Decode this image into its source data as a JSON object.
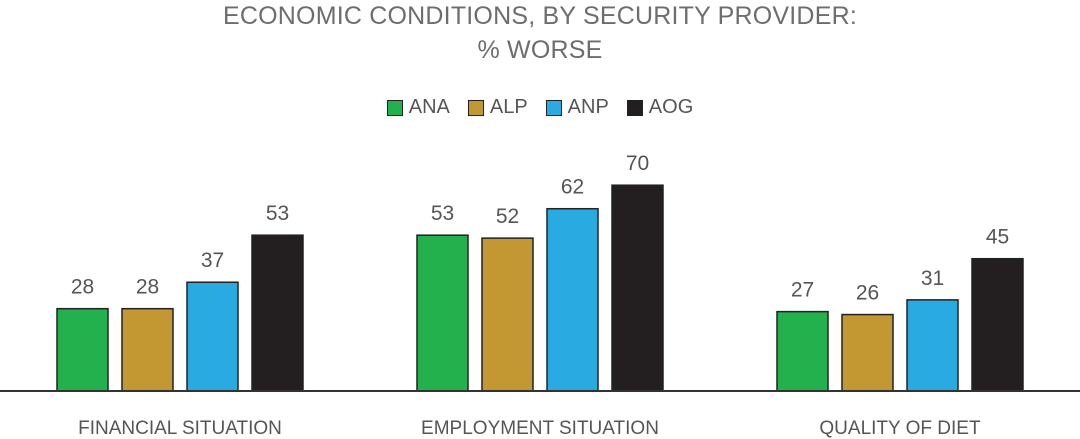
{
  "chart_data": {
    "type": "bar",
    "title_line1": "ECONOMIC CONDITIONS, BY SECURITY PROVIDER:",
    "title_line2": "% WORSE",
    "categories": [
      "FINANCIAL SITUATION",
      "EMPLOYMENT SITUATION",
      "QUALITY OF DIET"
    ],
    "series": [
      {
        "name": "ANA",
        "color": "#22b14c",
        "values": [
          28,
          53,
          27
        ]
      },
      {
        "name": "ALP",
        "color": "#c39731",
        "values": [
          28,
          52,
          26
        ]
      },
      {
        "name": "ANP",
        "color": "#29abe2",
        "values": [
          37,
          62,
          31
        ]
      },
      {
        "name": "AOG",
        "color": "#231f20",
        "values": [
          53,
          70,
          45
        ]
      }
    ],
    "ylim": [
      0,
      100
    ],
    "grid": false,
    "legend_position": "top-center"
  }
}
